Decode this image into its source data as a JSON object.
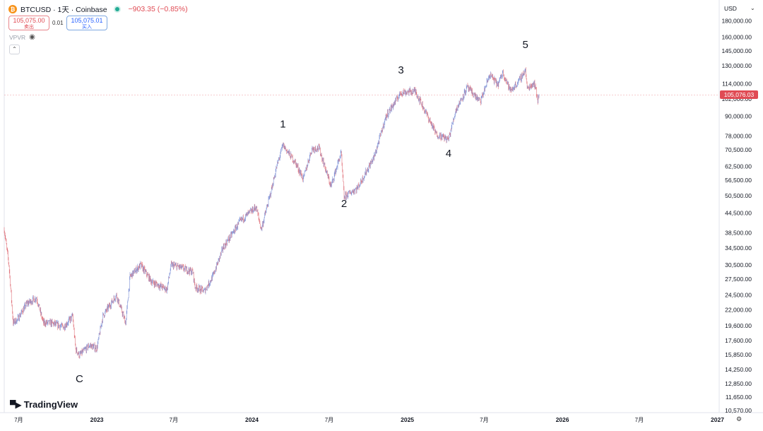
{
  "header": {
    "symbol_icon": "bitcoin-icon",
    "title": "BTCUSD · 1天 · Coinbase",
    "change": "−903.35 (−0.85%)",
    "status_icon": "market-status-dot"
  },
  "trade": {
    "sell_price": "105,075.00",
    "sell_label": "卖出",
    "spread": "0.01",
    "buy_price": "105,075.01",
    "buy_label": "买入"
  },
  "indicator": {
    "name": "VPVR",
    "icon": "eye-icon"
  },
  "collapse_icon": "chevron-up-icon",
  "axis": {
    "currency": "USD",
    "currency_icon": "chevron-down-icon",
    "current_price": "105,076.03",
    "settings_icon": "gear-icon"
  },
  "branding": {
    "logo_icon": "tradingview-logo-icon",
    "name": "TradingView"
  },
  "chart_data": {
    "type": "candlestick",
    "scale": "log",
    "grid": false,
    "y_ticks": [
      180000,
      160000,
      145000,
      130000,
      114000,
      102000,
      90000,
      78000,
      70500,
      62500,
      56500,
      50500,
      44500,
      38500,
      34500,
      30500,
      27500,
      24500,
      22000,
      19600,
      17600,
      15850,
      14250,
      12850,
      11650,
      10570
    ],
    "y_tick_labels": [
      "180,000.00",
      "160,000.00",
      "145,000.00",
      "130,000.00",
      "114,000.00",
      "102,000.00",
      "90,000.00",
      "78,000.00",
      "70,500.00",
      "62,500.00",
      "56,500.00",
      "50,500.00",
      "44,500.00",
      "38,500.00",
      "34,500.00",
      "30,500.00",
      "27,500.00",
      "24,500.00",
      "22,000.00",
      "19,600.00",
      "17,600.00",
      "15,850.00",
      "14,250.00",
      "12,850.00",
      "11,650.00",
      "10,570.00"
    ],
    "x_ticks": [
      "2022-07-01",
      "2023-01-01",
      "2023-07-01",
      "2024-01-01",
      "2024-07-01",
      "2025-01-01",
      "2025-07-01",
      "2026-01-01",
      "2026-07-01",
      "2027-01-01"
    ],
    "x_tick_labels": [
      "7月",
      "2023",
      "7月",
      "2024",
      "7月",
      "2025",
      "7月",
      "2026",
      "7月",
      "2027"
    ],
    "x_range": [
      "2022-05-28",
      "2027-04-05"
    ],
    "ylim": [
      10000,
      200000
    ],
    "current_price": 105076.03,
    "price_path": [
      [
        "2022-05-28",
        39500
      ],
      [
        "2022-06-08",
        30500
      ],
      [
        "2022-06-18",
        20000
      ],
      [
        "2022-06-28",
        20500
      ],
      [
        "2022-07-20",
        23000
      ],
      [
        "2022-08-12",
        24000
      ],
      [
        "2022-08-28",
        20000
      ],
      [
        "2022-09-15",
        20000
      ],
      [
        "2022-10-15",
        19400
      ],
      [
        "2022-11-05",
        21000
      ],
      [
        "2022-11-12",
        16500
      ],
      [
        "2022-11-21",
        15800
      ],
      [
        "2022-12-15",
        17000
      ],
      [
        "2023-01-01",
        16600
      ],
      [
        "2023-01-15",
        21000
      ],
      [
        "2023-02-16",
        24500
      ],
      [
        "2023-03-10",
        20000
      ],
      [
        "2023-03-20",
        28000
      ],
      [
        "2023-04-14",
        30500
      ],
      [
        "2023-05-10",
        27000
      ],
      [
        "2023-06-15",
        25500
      ],
      [
        "2023-06-25",
        30500
      ],
      [
        "2023-07-15",
        30000
      ],
      [
        "2023-08-15",
        29000
      ],
      [
        "2023-08-20",
        26000
      ],
      [
        "2023-09-11",
        25200
      ],
      [
        "2023-10-01",
        28000
      ],
      [
        "2023-10-25",
        34500
      ],
      [
        "2023-12-05",
        42000
      ],
      [
        "2024-01-11",
        46500
      ],
      [
        "2024-01-23",
        39500
      ],
      [
        "2024-02-15",
        52000
      ],
      [
        "2024-02-28",
        62000
      ],
      [
        "2024-03-14",
        73000
      ],
      [
        "2024-04-13",
        64000
      ],
      [
        "2024-05-01",
        57000
      ],
      [
        "2024-05-21",
        71000
      ],
      [
        "2024-06-07",
        71500
      ],
      [
        "2024-07-05",
        54000
      ],
      [
        "2024-07-29",
        69000
      ],
      [
        "2024-08-05",
        50000
      ],
      [
        "2024-09-06",
        53500
      ],
      [
        "2024-10-15",
        67000
      ],
      [
        "2024-11-12",
        90000
      ],
      [
        "2024-12-17",
        107000
      ],
      [
        "2025-01-20",
        108000
      ],
      [
        "2025-02-25",
        86000
      ],
      [
        "2025-03-10",
        79000
      ],
      [
        "2025-04-08",
        76000
      ],
      [
        "2025-04-25",
        94000
      ],
      [
        "2025-05-22",
        111000
      ],
      [
        "2025-06-22",
        100000
      ],
      [
        "2025-07-14",
        122000
      ],
      [
        "2025-08-02",
        113000
      ],
      [
        "2025-08-14",
        124000
      ],
      [
        "2025-09-01",
        108000
      ],
      [
        "2025-09-20",
        116000
      ],
      [
        "2025-10-06",
        126000
      ],
      [
        "2025-10-10",
        110000
      ],
      [
        "2025-10-27",
        115000
      ],
      [
        "2025-11-04",
        101000
      ],
      [
        "2025-11-07",
        105076
      ]
    ],
    "annotations": [
      {
        "text": "C",
        "x": "2022-11-21",
        "y": 13000
      },
      {
        "text": "1",
        "x": "2024-03-14",
        "y": 83000
      },
      {
        "text": "2",
        "x": "2024-08-05",
        "y": 46500
      },
      {
        "text": "3",
        "x": "2024-12-17",
        "y": 123000
      },
      {
        "text": "4",
        "x": "2025-04-08",
        "y": 67000
      },
      {
        "text": "5",
        "x": "2025-10-06",
        "y": 148000
      }
    ]
  }
}
